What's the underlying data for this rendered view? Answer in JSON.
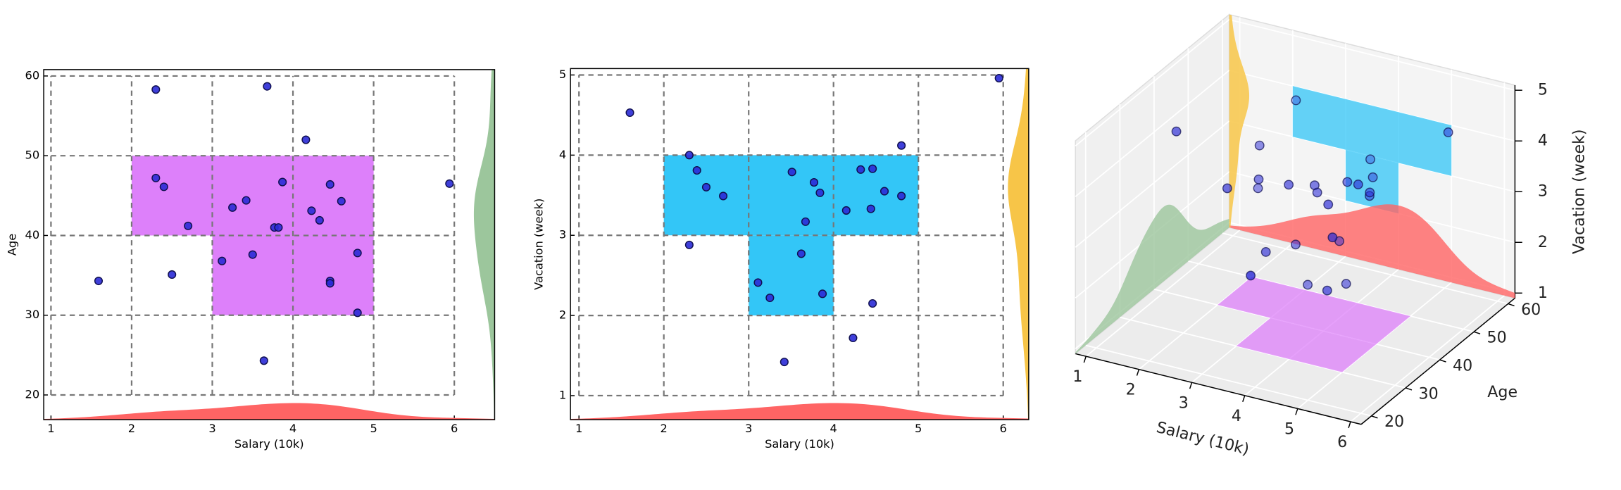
{
  "chart_data": [
    {
      "type": "scatter",
      "xlabel": "Salary (10k)",
      "ylabel": "Age",
      "x": [
        1.59,
        2.3,
        2.3,
        2.4,
        2.5,
        2.7,
        3.12,
        3.25,
        3.42,
        3.5,
        3.64,
        3.68,
        3.77,
        3.82,
        3.87,
        4.16,
        4.23,
        4.33,
        4.46,
        4.46,
        4.46,
        4.6,
        4.8,
        4.8,
        5.94
      ],
      "y": [
        34.3,
        58.3,
        47.2,
        46.1,
        35.1,
        41.2,
        36.8,
        43.5,
        44.4,
        37.6,
        24.3,
        58.7,
        41.0,
        41.0,
        46.7,
        52.0,
        43.1,
        41.9,
        46.4,
        34.3,
        34.0,
        44.3,
        37.8,
        30.3,
        46.5
      ],
      "color": "#2a2ad6",
      "xlim": [
        0.91,
        6.5
      ],
      "ylim": [
        16.9,
        60.8
      ],
      "xticks": [
        1,
        2,
        3,
        4,
        5,
        6
      ],
      "yticks": [
        20,
        30,
        40,
        50,
        60
      ],
      "grid": true,
      "regions": [
        {
          "xlim": [
            2,
            5
          ],
          "ylim": [
            40,
            50
          ]
        },
        {
          "xlim": [
            3,
            5
          ],
          "ylim": [
            30,
            40
          ]
        }
      ],
      "region_color": "#dd80fa",
      "kde_x_color": "#ff6464",
      "kde_y_color": "#9cc69c"
    },
    {
      "type": "scatter",
      "xlabel": "Salary (10k)",
      "ylabel": "Vacation (week)",
      "x": [
        1.6,
        2.3,
        2.3,
        2.39,
        2.5,
        2.7,
        3.11,
        3.25,
        3.42,
        3.51,
        3.62,
        3.67,
        3.77,
        3.84,
        3.87,
        4.15,
        4.23,
        4.32,
        4.44,
        4.46,
        4.46,
        4.6,
        4.8,
        4.8,
        5.95
      ],
      "y": [
        4.53,
        4.0,
        2.88,
        3.81,
        3.6,
        3.49,
        2.41,
        2.22,
        1.42,
        3.79,
        2.77,
        3.17,
        3.66,
        3.53,
        2.27,
        3.31,
        1.72,
        3.82,
        3.33,
        3.83,
        2.15,
        3.55,
        4.12,
        3.49,
        4.96
      ],
      "color": "#2a2ad6",
      "xlim": [
        0.9,
        6.3
      ],
      "ylim": [
        0.7,
        5.08
      ],
      "xticks": [
        1,
        2,
        3,
        4,
        5,
        6
      ],
      "yticks": [
        1,
        2,
        3,
        4,
        5
      ],
      "grid": true,
      "regions": [
        {
          "xlim": [
            2,
            5
          ],
          "ylim": [
            3,
            4
          ]
        },
        {
          "xlim": [
            3,
            4
          ],
          "ylim": [
            2,
            3
          ]
        }
      ],
      "region_color": "#33c6f7",
      "kde_x_color": "#ff6464",
      "kde_y_color": "#f7c548"
    },
    {
      "type": "scatter3d",
      "xlabel": "Salary (10k)",
      "ylabel": "Age",
      "zlabel": "Vacation (week)",
      "x": [
        1.59,
        2.3,
        2.3,
        2.4,
        2.5,
        2.7,
        3.12,
        3.25,
        3.42,
        3.5,
        3.64,
        3.68,
        3.77,
        3.82,
        3.87,
        4.16,
        4.23,
        4.33,
        4.46,
        4.46,
        4.46,
        4.6,
        4.8,
        4.8,
        5.94
      ],
      "y": [
        34.3,
        58.3,
        47.2,
        46.1,
        35.1,
        41.2,
        36.8,
        43.5,
        44.4,
        37.6,
        24.3,
        58.7,
        41.0,
        41.0,
        46.7,
        52.0,
        43.1,
        41.9,
        46.4,
        34.3,
        34.0,
        44.3,
        37.8,
        30.3,
        46.5
      ],
      "z": [
        4.53,
        4.0,
        2.88,
        3.81,
        3.6,
        3.49,
        2.41,
        2.22,
        1.42,
        3.79,
        2.77,
        3.17,
        3.66,
        3.53,
        2.27,
        3.31,
        1.72,
        3.82,
        3.33,
        3.83,
        2.15,
        3.55,
        4.12,
        3.49,
        4.96
      ],
      "color": "#2a2ad6",
      "xlim": [
        0.8,
        6.2
      ],
      "ylim": [
        17,
        62
      ],
      "zlim": [
        0.9,
        5.1
      ],
      "xticks": [
        1,
        2,
        3,
        4,
        5,
        6
      ],
      "yticks": [
        20,
        30,
        40,
        50,
        60
      ],
      "zticks": [
        1,
        2,
        3,
        4,
        5
      ],
      "grid": true,
      "floor_regions": [
        {
          "xlim": [
            2,
            5
          ],
          "ylim": [
            40,
            50
          ]
        },
        {
          "xlim": [
            3,
            5
          ],
          "ylim": [
            30,
            40
          ]
        }
      ],
      "floor_color": "#dd80fa",
      "wall_regions": [
        {
          "xlim": [
            2,
            5
          ],
          "zlim": [
            3,
            4
          ]
        },
        {
          "xlim": [
            3,
            4
          ],
          "zlim": [
            2,
            3
          ]
        }
      ],
      "wall_color": "#33c6f7",
      "kde_x_color": "#ff6464",
      "kde_y_color": "#9cc69c",
      "kde_z_color": "#f7c548"
    }
  ]
}
